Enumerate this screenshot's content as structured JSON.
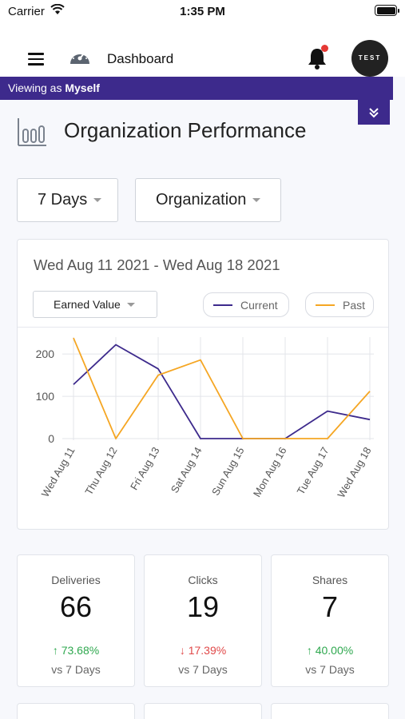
{
  "status_bar": {
    "carrier": "Carrier",
    "time": "1:35 PM"
  },
  "header": {
    "title": "Dashboard",
    "avatar_text": "TEST",
    "has_notification": true
  },
  "viewing": {
    "prefix": "Viewing as",
    "who": "Myself"
  },
  "page": {
    "title": "Organization Performance"
  },
  "filters": {
    "period": "7 Days",
    "scope": "Organization"
  },
  "chart_card": {
    "date_range": "Wed Aug 11 2021 - Wed Aug 18 2021",
    "metric": "Earned Value",
    "legend": {
      "current": "Current",
      "past": "Past"
    }
  },
  "colors": {
    "current": "#3d2a8c",
    "past": "#f5a623",
    "brand": "#3d2a8c",
    "up": "#2fa84f",
    "down": "#e04848"
  },
  "chart_data": {
    "type": "line",
    "categories": [
      "Wed Aug 11",
      "Thu Aug 12",
      "Fri Aug 13",
      "Sat Aug 14",
      "Sun Aug 15",
      "Mon Aug 16",
      "Tue Aug 17",
      "Wed Aug 18"
    ],
    "yticks": [
      "0",
      "100",
      "200"
    ],
    "ylim": [
      0,
      240
    ],
    "grid": true,
    "legend_position": "top-right",
    "series": [
      {
        "name": "Current",
        "color": "#3d2a8c",
        "values": [
          128,
          222,
          165,
          0,
          0,
          0,
          65,
          45
        ]
      },
      {
        "name": "Past",
        "color": "#f5a623",
        "values": [
          238,
          0,
          150,
          186,
          0,
          0,
          0,
          112
        ]
      }
    ]
  },
  "stats": [
    {
      "label": "Deliveries",
      "value": "66",
      "change": "73.68%",
      "direction": "up",
      "sub": "vs 7 Days"
    },
    {
      "label": "Clicks",
      "value": "19",
      "change": "17.39%",
      "direction": "down",
      "sub": "vs 7 Days"
    },
    {
      "label": "Shares",
      "value": "7",
      "change": "40.00%",
      "direction": "up",
      "sub": "vs 7 Days"
    }
  ]
}
